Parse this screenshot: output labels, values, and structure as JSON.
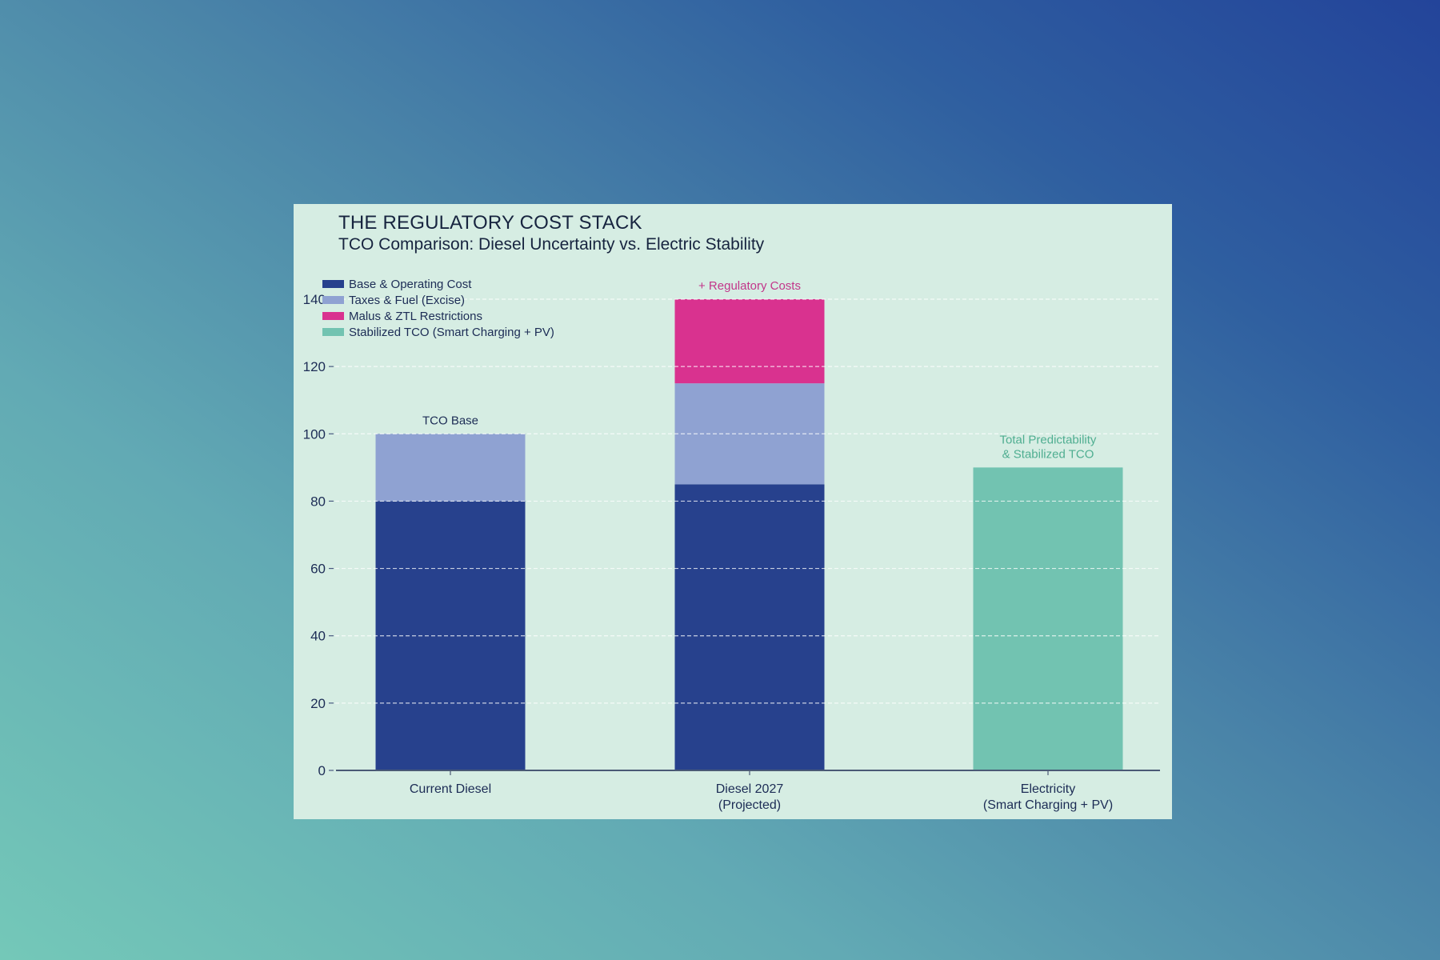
{
  "chart_data": {
    "type": "bar",
    "stacked": true,
    "title": "THE REGULATORY COST STACK",
    "subtitle": "TCO Comparison: Diesel Uncertainty vs. Electric Stability",
    "xlabel": "",
    "ylabel": "",
    "ylim": [
      0,
      140
    ],
    "yticks": [
      0,
      20,
      40,
      60,
      80,
      100,
      120,
      140
    ],
    "grid": true,
    "legend_position": "top-left",
    "categories": [
      [
        "Current Diesel"
      ],
      [
        "Diesel 2027",
        "(Projected)"
      ],
      [
        "Electricity",
        "(Smart Charging + PV)"
      ]
    ],
    "series": [
      {
        "name": "Base & Operating Cost",
        "color": "#27418d",
        "values": [
          80,
          85,
          0
        ]
      },
      {
        "name": "Taxes & Fuel (Excise)",
        "color": "#8fa2d2",
        "values": [
          20,
          30,
          0
        ]
      },
      {
        "name": "Malus & ZTL Restrictions",
        "color": "#d9328f",
        "values": [
          0,
          25,
          0
        ]
      },
      {
        "name": "Stabilized TCO (Smart Charging + PV)",
        "color": "#72c3b1",
        "values": [
          0,
          0,
          90
        ]
      }
    ],
    "annotations": [
      {
        "category_index": 0,
        "lines": [
          "TCO Base"
        ],
        "color": "#1c2c55"
      },
      {
        "category_index": 1,
        "lines": [
          "+ Regulatory Costs"
        ],
        "color": "#c2368a"
      },
      {
        "category_index": 2,
        "lines": [
          "Total Predictability",
          "& Stabilized TCO"
        ],
        "color": "#4fae91"
      }
    ]
  }
}
